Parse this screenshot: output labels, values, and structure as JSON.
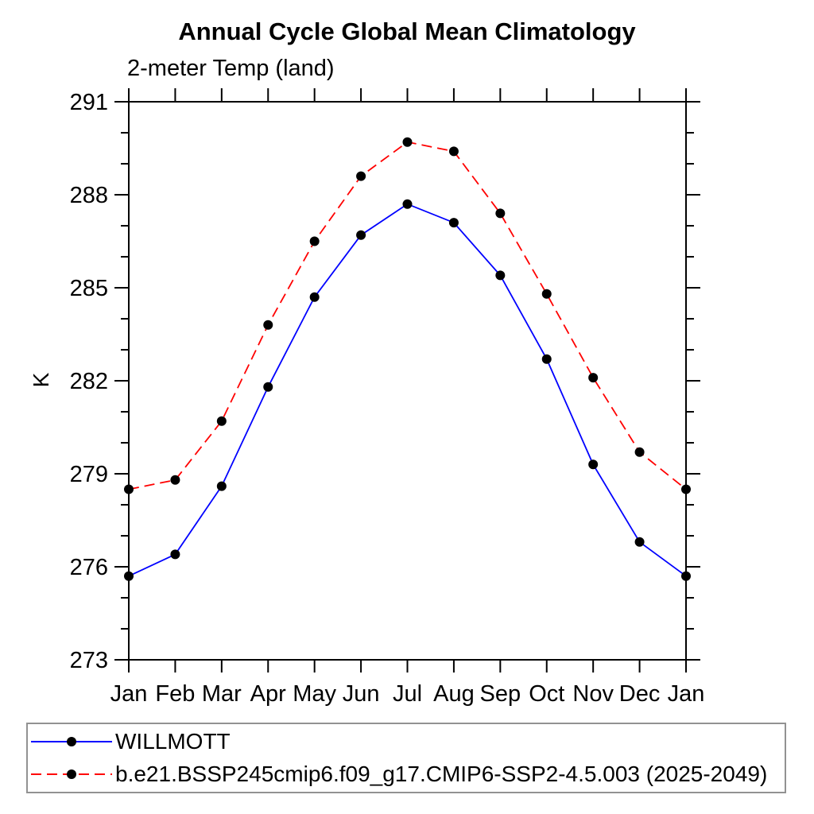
{
  "chart_data": {
    "type": "line",
    "title": "Annual Cycle Global Mean Climatology",
    "subtitle": "2-meter Temp (land)",
    "ylabel": "K",
    "xlabel": "",
    "categories": [
      "Jan",
      "Feb",
      "Mar",
      "Apr",
      "May",
      "Jun",
      "Jul",
      "Aug",
      "Sep",
      "Oct",
      "Nov",
      "Dec",
      "Jan"
    ],
    "ylim": [
      273,
      291
    ],
    "ytick_major_interval": 3,
    "ytick_minor_interval": 1,
    "ytick_major_labels": [
      "273",
      "276",
      "279",
      "282",
      "285",
      "288",
      "291"
    ],
    "grid": false,
    "legend_position": "bottom",
    "marker": {
      "shape": "circle",
      "color": "#000000",
      "radius": 6
    },
    "axis_color": "#000000",
    "series": [
      {
        "name": "WILLMOTT",
        "color": "#0000ff",
        "line_style": "solid",
        "values": [
          275.7,
          276.4,
          278.6,
          281.8,
          284.7,
          286.7,
          287.7,
          287.1,
          285.4,
          282.7,
          279.3,
          276.8,
          275.7
        ]
      },
      {
        "name": "b.e21.BSSP245cmip6.f09_g17.CMIP6-SSP2-4.5.003 (2025-2049)",
        "color": "#ff0000",
        "line_style": "dashed",
        "values": [
          278.5,
          278.8,
          280.7,
          283.8,
          286.5,
          288.6,
          289.7,
          289.4,
          287.4,
          284.8,
          282.1,
          279.7,
          278.5
        ]
      }
    ],
    "legend_border_color": "#929292"
  }
}
